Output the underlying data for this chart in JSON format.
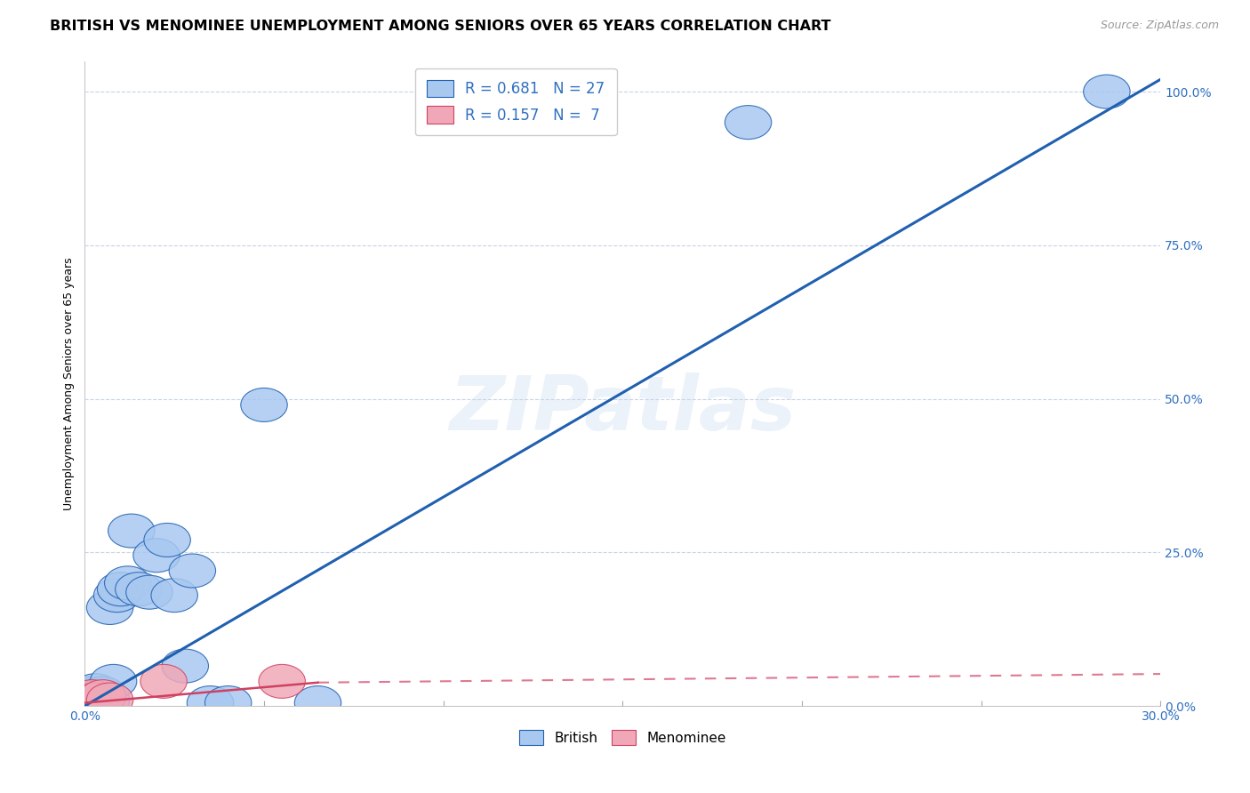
{
  "title": "BRITISH VS MENOMINEE UNEMPLOYMENT AMONG SENIORS OVER 65 YEARS CORRELATION CHART",
  "source": "Source: ZipAtlas.com",
  "ylabel": "Unemployment Among Seniors over 65 years",
  "xlim": [
    0.0,
    0.3
  ],
  "ylim": [
    0.0,
    1.05
  ],
  "yticks": [
    0.0,
    0.25,
    0.5,
    0.75,
    1.0
  ],
  "ytick_labels": [
    "0.0%",
    "25.0%",
    "50.0%",
    "75.0%",
    "100.0%"
  ],
  "xtick_positions": [
    0.0,
    0.05,
    0.1,
    0.15,
    0.2,
    0.25,
    0.3
  ],
  "xtick_labels": [
    "0.0%",
    "",
    "",
    "",
    "",
    "",
    "30.0%"
  ],
  "british_x": [
    0.001,
    0.002,
    0.002,
    0.003,
    0.004,
    0.005,
    0.005,
    0.006,
    0.007,
    0.008,
    0.009,
    0.01,
    0.012,
    0.013,
    0.015,
    0.018,
    0.02,
    0.023,
    0.025,
    0.028,
    0.03,
    0.035,
    0.04,
    0.05,
    0.065,
    0.185,
    0.285
  ],
  "british_y": [
    0.01,
    0.015,
    0.02,
    0.025,
    0.01,
    0.015,
    0.02,
    0.01,
    0.16,
    0.04,
    0.18,
    0.19,
    0.2,
    0.285,
    0.19,
    0.185,
    0.245,
    0.27,
    0.18,
    0.065,
    0.22,
    0.005,
    0.005,
    0.49,
    0.005,
    0.95,
    1.0
  ],
  "menominee_x": [
    0.001,
    0.002,
    0.003,
    0.005,
    0.007,
    0.022,
    0.055
  ],
  "menominee_y": [
    0.008,
    0.015,
    0.01,
    0.015,
    0.01,
    0.04,
    0.04
  ],
  "british_R": 0.681,
  "british_N": 27,
  "menominee_R": 0.157,
  "menominee_N": 7,
  "british_color": "#a8c8f0",
  "british_line_color": "#2060b0",
  "menominee_color": "#f0a8b8",
  "menominee_line_color": "#d04060",
  "watermark": "ZIPatlas",
  "background_color": "#ffffff",
  "grid_color": "#c8d4e8",
  "title_fontsize": 11.5,
  "axis_label_fontsize": 9,
  "tick_fontsize": 10,
  "legend_fontsize": 12,
  "source_fontsize": 9
}
